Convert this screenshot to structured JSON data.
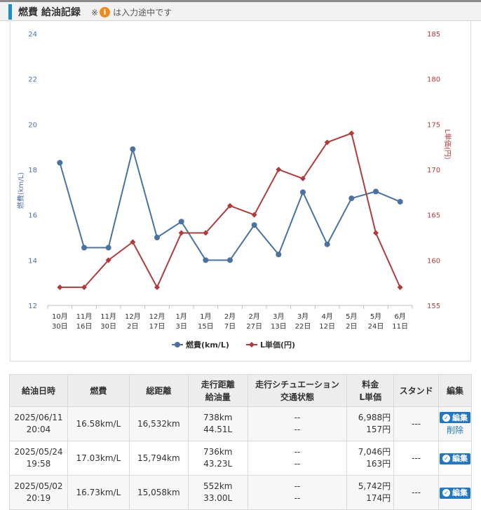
{
  "header": {
    "title": "燃費 給油記録",
    "note_prefix": "※",
    "note_icon": "i",
    "note_suffix": "は入力途中です"
  },
  "chart_data": {
    "type": "line",
    "categories": [
      [
        "10月",
        "30日"
      ],
      [
        "11月",
        "16日"
      ],
      [
        "11月",
        "30日"
      ],
      [
        "12月",
        "2日"
      ],
      [
        "12月",
        "17日"
      ],
      [
        "1月",
        "3日"
      ],
      [
        "1月",
        "15日"
      ],
      [
        "2月",
        "7日"
      ],
      [
        "2月",
        "27日"
      ],
      [
        "3月",
        "13日"
      ],
      [
        "3月",
        "22日"
      ],
      [
        "4月",
        "12日"
      ],
      [
        "5月",
        "2日"
      ],
      [
        "5月",
        "24日"
      ],
      [
        "6月",
        "11日"
      ]
    ],
    "y_left": {
      "label": "燃費(km/L)",
      "ylim": [
        12,
        24
      ],
      "ticks": [
        12,
        14,
        16,
        18,
        20,
        22,
        24
      ]
    },
    "y_right": {
      "label": "L単価(円)",
      "ylim": [
        155,
        185
      ],
      "ticks": [
        155,
        160,
        165,
        170,
        175,
        180,
        185
      ]
    },
    "series": [
      {
        "name": "燃費(km/L)",
        "axis": "left",
        "color": "#4a72a0",
        "values": [
          18.3,
          14.55,
          14.55,
          18.9,
          15.0,
          15.7,
          14.0,
          14.0,
          15.55,
          14.25,
          17.0,
          14.7,
          16.73,
          17.03,
          16.58
        ]
      },
      {
        "name": "L単価(円)",
        "axis": "right",
        "color": "#b03b3b",
        "values": [
          157,
          157,
          160,
          162,
          157,
          163,
          163,
          166,
          165,
          170,
          169,
          173,
          174,
          163,
          157
        ]
      }
    ],
    "legend": "bottom",
    "grid": false
  },
  "table": {
    "headers": [
      {
        "lines": [
          "給油日時"
        ]
      },
      {
        "lines": [
          "燃費"
        ]
      },
      {
        "lines": [
          "総距離"
        ]
      },
      {
        "lines": [
          "走行距離",
          "給油量"
        ]
      },
      {
        "lines": [
          "走行シチュエーション",
          "交通状態"
        ]
      },
      {
        "lines": [
          "料金",
          "L単価"
        ]
      },
      {
        "lines": [
          "スタンド"
        ]
      },
      {
        "lines": [
          "編集"
        ]
      }
    ],
    "edit_label": "編集",
    "delete_label": "削除",
    "rows": [
      {
        "date": "2025/06/11",
        "time": "20:04",
        "fuel_eff": "16.58km/L",
        "total": "16,532km",
        "distance": "738km",
        "amount": "44.51L",
        "situation": "--",
        "traffic": "--",
        "price": "6,988円",
        "unit_price": "157円",
        "stand": "---",
        "deletable": true
      },
      {
        "date": "2025/05/24",
        "time": "19:58",
        "fuel_eff": "17.03km/L",
        "total": "15,794km",
        "distance": "736km",
        "amount": "43.23L",
        "situation": "--",
        "traffic": "--",
        "price": "7,046円",
        "unit_price": "163円",
        "stand": "---",
        "deletable": false
      },
      {
        "date": "2025/05/02",
        "time": "20:19",
        "fuel_eff": "16.73km/L",
        "total": "15,058km",
        "distance": "552km",
        "amount": "33.00L",
        "situation": "--",
        "traffic": "--",
        "price": "5,742円",
        "unit_price": "174円",
        "stand": "---",
        "deletable": false
      }
    ]
  }
}
